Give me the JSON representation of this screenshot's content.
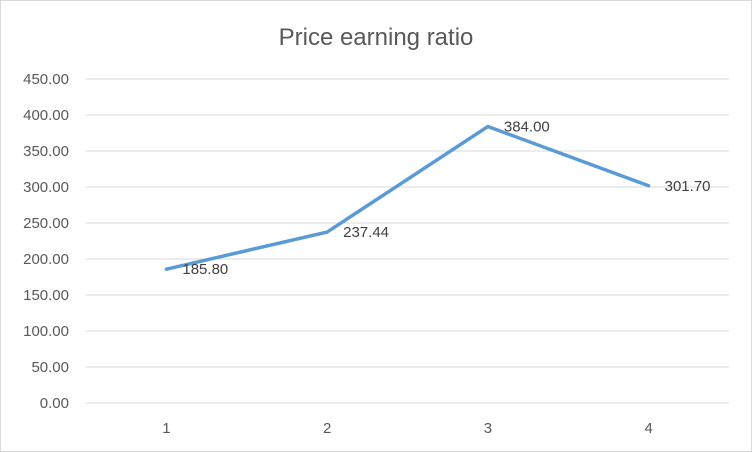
{
  "chart_data": {
    "type": "line",
    "title": "Price earning ratio",
    "xlabel": "",
    "ylabel": "",
    "categories": [
      "1",
      "2",
      "3",
      "4"
    ],
    "series": [
      {
        "values": [
          185.8,
          237.44,
          384.0,
          301.7
        ],
        "data_labels": [
          "185.80",
          "237.44",
          "384.00",
          "301.70"
        ],
        "color": "#5b9bd5"
      }
    ],
    "ylim": [
      0,
      450
    ],
    "y_ticks": [
      "0.00",
      "50.00",
      "100.00",
      "150.00",
      "200.00",
      "250.00",
      "300.00",
      "350.00",
      "400.00",
      "450.00"
    ],
    "grid": true,
    "legend": "none"
  }
}
